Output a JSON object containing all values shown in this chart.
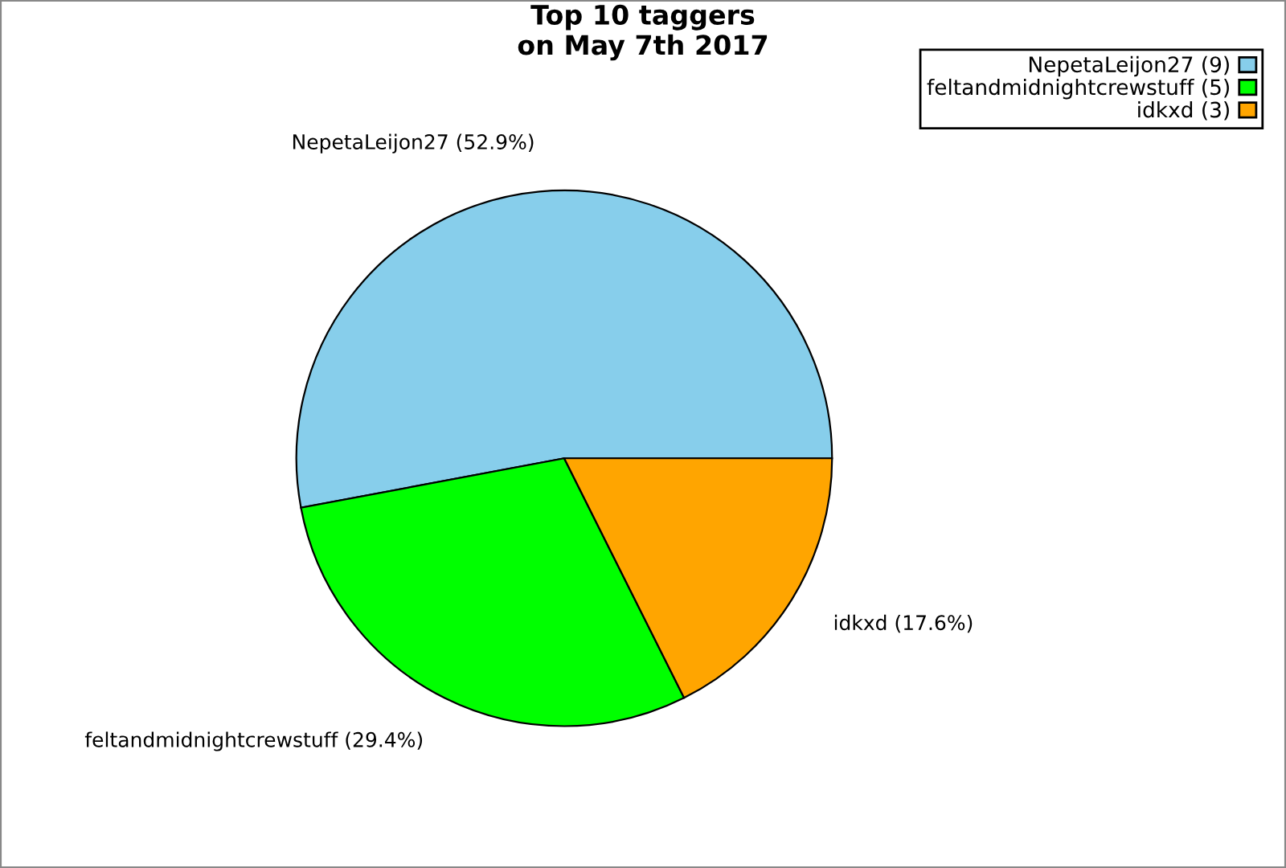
{
  "chart_data": {
    "type": "pie",
    "title": "Top 10 taggers\non May 7th 2017",
    "categories": [
      "NepetaLeijon27 (9)",
      "feltandmidnightcrewstuff (5)",
      "idkxd (3)"
    ],
    "values": [
      52.9,
      29.4,
      17.6
    ],
    "value_labels": [
      "NepetaLeijon27 (52.9%)",
      "feltandmidnightcrewstuff (29.4%)",
      "idkxd (17.6%)"
    ],
    "colors": [
      "#87ceeb",
      "#00ff00",
      "#ffa500"
    ],
    "legend": "top right"
  }
}
